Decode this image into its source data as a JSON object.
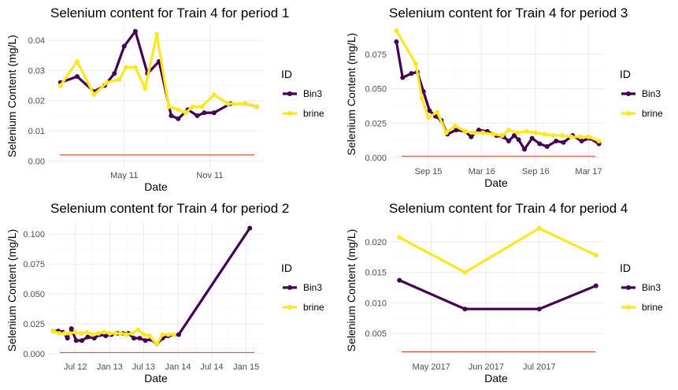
{
  "colors": {
    "Bin3": "#440154",
    "brine": "#FDE725",
    "reference_line": "#E8392B"
  },
  "chart_data": [
    {
      "type": "line",
      "title": "Selenium content for Train 4 for period 1",
      "xlabel": "Date",
      "ylabel": "Selenium Content (mg/L)",
      "x_ticks": [
        {
          "date": "2011-05-01",
          "label": "May 11"
        },
        {
          "date": "2011-11-01",
          "label": "Nov 11"
        }
      ],
      "y_ticks": [
        0.0,
        0.01,
        0.02,
        0.03,
        0.04
      ],
      "y_tick_labels": [
        "0.00",
        "0.01",
        "0.02",
        "0.03",
        "0.04"
      ],
      "xlim": [
        "2010-11-20",
        "2012-02-25"
      ],
      "ylim": [
        -0.002,
        0.045
      ],
      "reference_line": 0.002,
      "legend": {
        "title": "ID",
        "entries": [
          "Bin3",
          "brine"
        ],
        "position": "right"
      },
      "series": [
        {
          "name": "Bin3",
          "points": [
            [
              "2010-12-15",
              0.026
            ],
            [
              "2011-01-20",
              0.028
            ],
            [
              "2011-02-25",
              0.023
            ],
            [
              "2011-03-20",
              0.025
            ],
            [
              "2011-04-10",
              0.029
            ],
            [
              "2011-05-01",
              0.038
            ],
            [
              "2011-05-25",
              0.043
            ],
            [
              "2011-06-20",
              0.029
            ],
            [
              "2011-07-15",
              0.033
            ],
            [
              "2011-08-10",
              0.015
            ],
            [
              "2011-08-25",
              0.014
            ],
            [
              "2011-09-15",
              0.017
            ],
            [
              "2011-10-05",
              0.015
            ],
            [
              "2011-10-20",
              0.016
            ],
            [
              "2011-11-10",
              0.016
            ],
            [
              "2011-12-15",
              0.019
            ],
            [
              "2012-01-15",
              0.019
            ],
            [
              "2012-02-10",
              0.018
            ]
          ]
        },
        {
          "name": "brine",
          "points": [
            [
              "2010-12-15",
              0.025
            ],
            [
              "2011-01-20",
              0.033
            ],
            [
              "2011-02-25",
              0.022
            ],
            [
              "2011-03-25",
              0.026
            ],
            [
              "2011-04-20",
              0.027
            ],
            [
              "2011-05-05",
              0.031
            ],
            [
              "2011-05-25",
              0.031
            ],
            [
              "2011-06-15",
              0.024
            ],
            [
              "2011-07-10",
              0.042
            ],
            [
              "2011-08-05",
              0.018
            ],
            [
              "2011-08-25",
              0.017
            ],
            [
              "2011-09-10",
              0.016
            ],
            [
              "2011-09-25",
              0.018
            ],
            [
              "2011-10-15",
              0.018
            ],
            [
              "2011-11-10",
              0.022
            ],
            [
              "2011-12-10",
              0.019
            ],
            [
              "2012-01-15",
              0.019
            ],
            [
              "2012-02-10",
              0.018
            ]
          ]
        }
      ]
    },
    {
      "type": "line",
      "title": "Selenium content for Train 4 for period 3",
      "xlabel": "Date",
      "ylabel": "Selenium Content (mg/L)",
      "x_ticks": [
        {
          "date": "2015-09-01",
          "label": "Sep 15"
        },
        {
          "date": "2016-03-01",
          "label": "Mar 16"
        },
        {
          "date": "2016-09-01",
          "label": "Sep 16"
        },
        {
          "date": "2017-03-01",
          "label": "Mar 17"
        }
      ],
      "y_ticks": [
        0.0,
        0.025,
        0.05,
        0.075
      ],
      "y_tick_labels": [
        "0.000",
        "0.025",
        "0.050",
        "0.075"
      ],
      "xlim": [
        "2015-04-25",
        "2017-04-25"
      ],
      "ylim": [
        -0.004,
        0.096
      ],
      "reference_line": 0.001,
      "legend": {
        "title": "ID",
        "entries": [
          "Bin3",
          "brine"
        ],
        "position": "right"
      },
      "series": [
        {
          "name": "Bin3",
          "points": [
            [
              "2015-05-15",
              0.084
            ],
            [
              "2015-06-05",
              0.058
            ],
            [
              "2015-07-05",
              0.061
            ],
            [
              "2015-07-25",
              0.062
            ],
            [
              "2015-08-15",
              0.048
            ],
            [
              "2015-09-05",
              0.034
            ],
            [
              "2015-09-25",
              0.03
            ],
            [
              "2015-10-15",
              0.027
            ],
            [
              "2015-11-05",
              0.017
            ],
            [
              "2015-12-05",
              0.02
            ],
            [
              "2016-01-05",
              0.019
            ],
            [
              "2016-01-25",
              0.015
            ],
            [
              "2016-02-20",
              0.02
            ],
            [
              "2016-03-20",
              0.019
            ],
            [
              "2016-04-20",
              0.016
            ],
            [
              "2016-05-15",
              0.015
            ],
            [
              "2016-06-01",
              0.012
            ],
            [
              "2016-06-20",
              0.016
            ],
            [
              "2016-07-05",
              0.013
            ],
            [
              "2016-07-25",
              0.006
            ],
            [
              "2016-08-20",
              0.014
            ],
            [
              "2016-09-15",
              0.01
            ],
            [
              "2016-10-10",
              0.008
            ],
            [
              "2016-11-10",
              0.012
            ],
            [
              "2016-12-05",
              0.011
            ],
            [
              "2017-01-05",
              0.016
            ],
            [
              "2017-02-05",
              0.012
            ],
            [
              "2017-03-05",
              0.014
            ],
            [
              "2017-04-05",
              0.01
            ]
          ]
        },
        {
          "name": "brine",
          "points": [
            [
              "2015-05-15",
              0.092
            ],
            [
              "2015-07-20",
              0.068
            ],
            [
              "2015-08-10",
              0.043
            ],
            [
              "2015-09-01",
              0.029
            ],
            [
              "2015-10-01",
              0.033
            ],
            [
              "2015-11-01",
              0.018
            ],
            [
              "2015-12-01",
              0.023
            ],
            [
              "2016-01-05",
              0.019
            ],
            [
              "2016-02-05",
              0.018
            ],
            [
              "2016-03-05",
              0.018
            ],
            [
              "2016-04-10",
              0.017
            ],
            [
              "2016-05-10",
              0.016
            ],
            [
              "2016-06-01",
              0.02
            ],
            [
              "2016-07-01",
              0.018
            ],
            [
              "2016-08-01",
              0.019
            ],
            [
              "2016-09-01",
              0.018
            ],
            [
              "2016-10-01",
              0.017
            ],
            [
              "2016-11-01",
              0.016
            ],
            [
              "2016-12-01",
              0.016
            ],
            [
              "2017-01-01",
              0.015
            ],
            [
              "2017-02-01",
              0.015
            ],
            [
              "2017-03-01",
              0.015
            ],
            [
              "2017-04-05",
              0.012
            ]
          ]
        }
      ]
    },
    {
      "type": "line",
      "title": "Selenium content for Train 4 for period 2",
      "xlabel": "Date",
      "ylabel": "Selenium Content (mg/L)",
      "x_ticks": [
        {
          "date": "2012-07-01",
          "label": "Jul 12"
        },
        {
          "date": "2013-01-01",
          "label": "Jan 13"
        },
        {
          "date": "2013-07-01",
          "label": "Jul 13"
        },
        {
          "date": "2014-01-01",
          "label": "Jan 14"
        },
        {
          "date": "2014-07-01",
          "label": "Jul 14"
        },
        {
          "date": "2015-01-01",
          "label": "Jan 15"
        }
      ],
      "y_ticks": [
        0.0,
        0.025,
        0.05,
        0.075,
        0.1
      ],
      "y_tick_labels": [
        "0.000",
        "0.025",
        "0.050",
        "0.075",
        "0.100"
      ],
      "xlim": [
        "2012-02-10",
        "2015-04-05"
      ],
      "ylim": [
        -0.004,
        0.11
      ],
      "reference_line": 0.001,
      "legend": {
        "title": "ID",
        "entries": [
          "Bin3",
          "brine"
        ],
        "position": "right"
      },
      "series": [
        {
          "name": "Bin3",
          "points": [
            [
              "2012-03-05",
              0.019
            ],
            [
              "2012-04-01",
              0.019
            ],
            [
              "2012-04-25",
              0.018
            ],
            [
              "2012-05-20",
              0.013
            ],
            [
              "2012-06-10",
              0.021
            ],
            [
              "2012-07-05",
              0.011
            ],
            [
              "2012-08-05",
              0.011
            ],
            [
              "2012-09-05",
              0.014
            ],
            [
              "2012-10-10",
              0.013
            ],
            [
              "2012-11-10",
              0.016
            ],
            [
              "2012-12-10",
              0.015
            ],
            [
              "2013-01-10",
              0.016
            ],
            [
              "2013-02-10",
              0.017
            ],
            [
              "2013-03-10",
              0.017
            ],
            [
              "2013-04-10",
              0.017
            ],
            [
              "2013-05-10",
              0.013
            ],
            [
              "2013-06-10",
              0.013
            ],
            [
              "2013-07-10",
              0.011
            ],
            [
              "2013-08-10",
              0.012
            ],
            [
              "2013-09-10",
              0.008
            ],
            [
              "2013-10-10",
              0.013
            ],
            [
              "2013-11-10",
              0.015
            ],
            [
              "2014-01-05",
              0.016
            ],
            [
              "2015-01-20",
              0.105
            ]
          ]
        },
        {
          "name": "brine",
          "points": [
            [
              "2012-03-05",
              0.019
            ],
            [
              "2012-04-05",
              0.017
            ],
            [
              "2012-05-05",
              0.017
            ],
            [
              "2012-06-01",
              0.017
            ],
            [
              "2012-07-01",
              0.018
            ],
            [
              "2012-08-01",
              0.017
            ],
            [
              "2012-09-01",
              0.018
            ],
            [
              "2012-10-01",
              0.016
            ],
            [
              "2012-11-01",
              0.017
            ],
            [
              "2012-12-01",
              0.018
            ],
            [
              "2013-01-01",
              0.017
            ],
            [
              "2013-02-01",
              0.017
            ],
            [
              "2013-03-01",
              0.017
            ],
            [
              "2013-04-01",
              0.016
            ],
            [
              "2013-05-01",
              0.017
            ],
            [
              "2013-06-01",
              0.02
            ],
            [
              "2013-07-01",
              0.016
            ],
            [
              "2013-08-01",
              0.015
            ],
            [
              "2013-09-10",
              0.008
            ],
            [
              "2013-10-10",
              0.016
            ],
            [
              "2013-11-10",
              0.016
            ],
            [
              "2013-12-10",
              0.016
            ]
          ]
        }
      ]
    },
    {
      "type": "line",
      "title": "Selenium content for Train 4 for period 4",
      "xlabel": "Date",
      "ylabel": "Selenium Content (mg/L)",
      "x_ticks": [
        {
          "date": "2017-05-01",
          "label": "May 2017"
        },
        {
          "date": "2017-06-01",
          "label": "Jun 2017"
        },
        {
          "date": "2017-07-01",
          "label": "Jul 2017"
        }
      ],
      "y_ticks": [
        0.005,
        0.01,
        0.015,
        0.02
      ],
      "y_tick_labels": [
        "0.005",
        "0.010",
        "0.015",
        "0.020"
      ],
      "xlim": [
        "2017-04-08",
        "2017-08-07"
      ],
      "ylim": [
        0.0009,
        0.0232
      ],
      "reference_line": 0.002,
      "legend": {
        "title": "ID",
        "entries": [
          "Bin3",
          "brine"
        ],
        "position": "right"
      },
      "series": [
        {
          "name": "Bin3",
          "points": [
            [
              "2017-04-13",
              0.0137
            ],
            [
              "2017-05-20",
              0.009
            ],
            [
              "2017-07-01",
              0.009
            ],
            [
              "2017-08-02",
              0.0128
            ]
          ]
        },
        {
          "name": "brine",
          "points": [
            [
              "2017-04-13",
              0.0207
            ],
            [
              "2017-05-20",
              0.015
            ],
            [
              "2017-07-01",
              0.0222
            ],
            [
              "2017-08-02",
              0.0178
            ]
          ]
        }
      ]
    }
  ]
}
